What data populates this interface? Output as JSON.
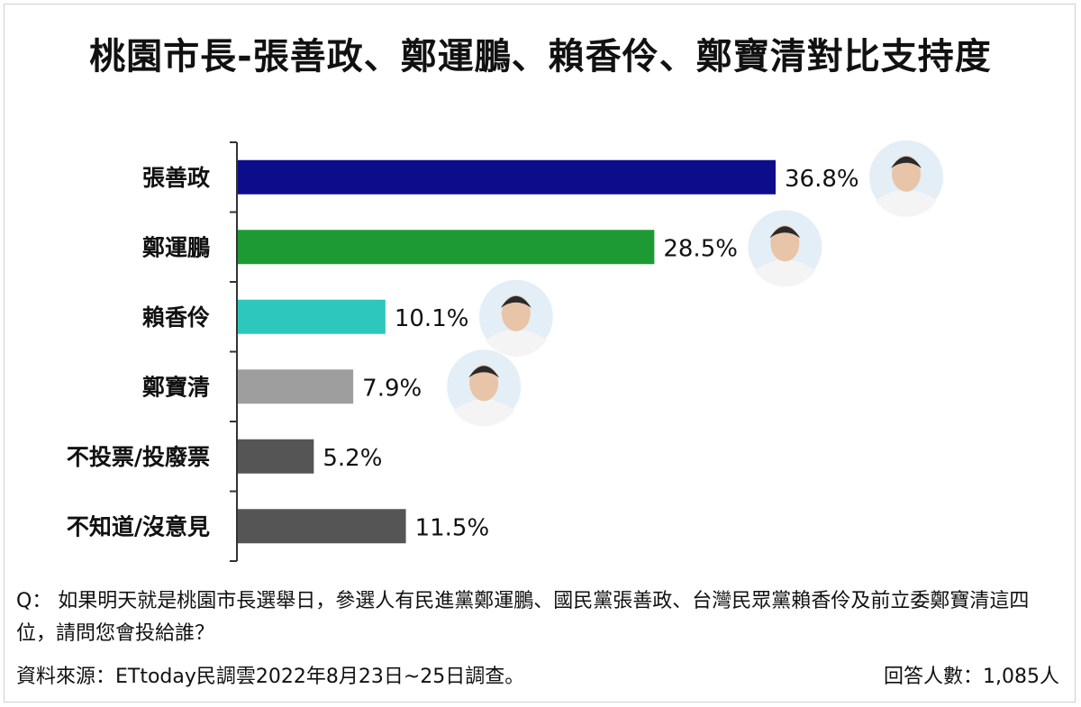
{
  "title": "桃園市長-張善政、鄭運鵬、賴香伶、鄭寶清對比支持度",
  "chart_data": {
    "type": "bar",
    "orientation": "horizontal",
    "title": "桃園市長-張善政、鄭運鵬、賴香伶、鄭寶清對比支持度",
    "categories": [
      "張善政",
      "鄭運鵬",
      "賴香伶",
      "鄭寶清",
      "不投票/投廢票",
      "不知道/沒意見"
    ],
    "values": [
      36.8,
      28.5,
      10.1,
      7.9,
      5.2,
      11.5
    ],
    "value_labels": [
      "36.8%",
      "28.5%",
      "10.1%",
      "7.9%",
      "5.2%",
      "11.5%"
    ],
    "colors": [
      "#0d0d8c",
      "#1e9a35",
      "#2ec7bd",
      "#9e9e9e",
      "#555555",
      "#555555"
    ],
    "photos": [
      "candidate-photo",
      "candidate-photo",
      "candidate-photo",
      "candidate-photo",
      null,
      null
    ],
    "xlim": [
      0,
      40
    ],
    "grid": false
  },
  "footer": {
    "question": "Q： 如果明天就是桃園市長選舉日，參選人有民進黨鄭運鵬、國民黨張善政、台灣民眾黨賴香伶及前立委鄭寶清這四位，請問您會投給誰？",
    "source": "資料來源：ETtoday民調雲2022年8月23日~25日調查。",
    "respondents": "回答人數：1,085人"
  }
}
